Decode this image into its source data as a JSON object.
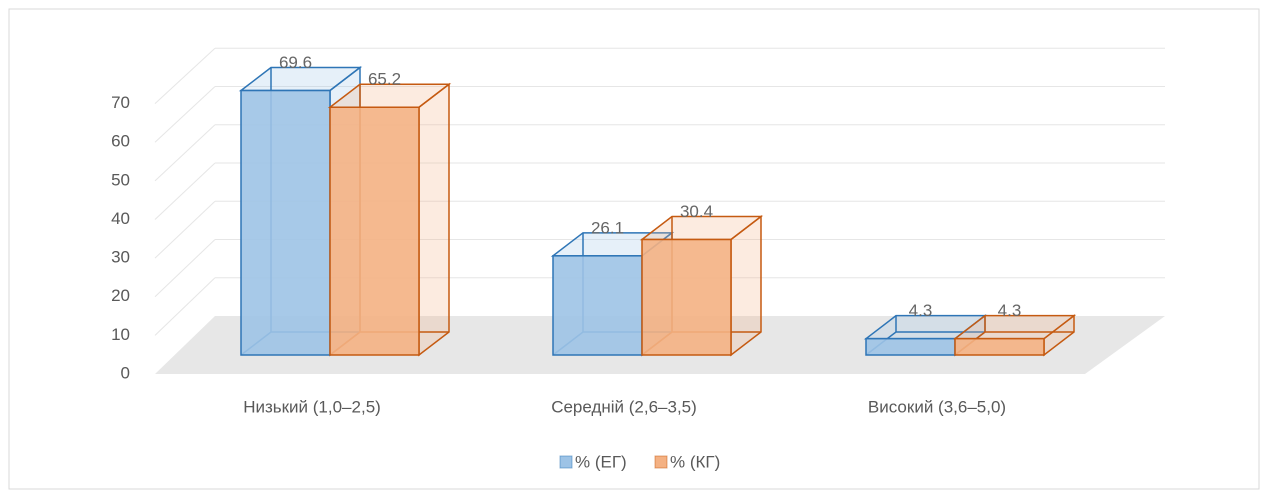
{
  "chart_data": {
    "type": "bar3d",
    "categories": [
      "Низький (1,0–2,5)",
      "Середній (2,6–3,5)",
      "Високий (3,6–5,0)"
    ],
    "series": [
      {
        "name": "% (ЕГ)",
        "color": "#9dc3e6",
        "stroke": "#2e75b6",
        "values": [
          69.6,
          26.1,
          4.3
        ]
      },
      {
        "name": "% (КГ)",
        "color": "#f4b183",
        "stroke": "#c55a11",
        "values": [
          65.2,
          30.4,
          4.3
        ]
      }
    ],
    "ylim": [
      0,
      80
    ],
    "yticks": [
      0,
      10,
      20,
      30,
      40,
      50,
      60,
      70
    ],
    "grid": true,
    "legend": "bottom"
  }
}
